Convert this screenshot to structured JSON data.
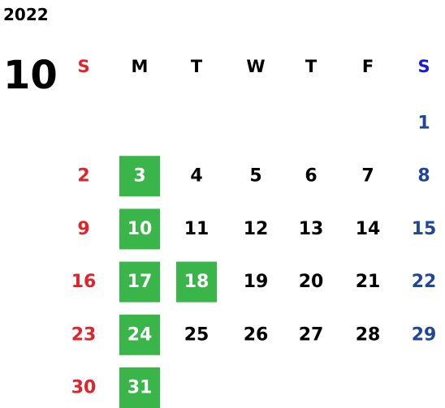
{
  "year": "2022",
  "month": "10",
  "weekdays": [
    "S",
    "M",
    "T",
    "W",
    "T",
    "F",
    "S"
  ],
  "weeks": [
    [
      null,
      null,
      null,
      null,
      null,
      null,
      {
        "day": "1",
        "highlight": false
      }
    ],
    [
      {
        "day": "2",
        "highlight": false
      },
      {
        "day": "3",
        "highlight": true
      },
      {
        "day": "4",
        "highlight": false
      },
      {
        "day": "5",
        "highlight": false
      },
      {
        "day": "6",
        "highlight": false
      },
      {
        "day": "7",
        "highlight": false
      },
      {
        "day": "8",
        "highlight": false
      }
    ],
    [
      {
        "day": "9",
        "highlight": false
      },
      {
        "day": "10",
        "highlight": true
      },
      {
        "day": "11",
        "highlight": false
      },
      {
        "day": "12",
        "highlight": false
      },
      {
        "day": "13",
        "highlight": false
      },
      {
        "day": "14",
        "highlight": false
      },
      {
        "day": "15",
        "highlight": false
      }
    ],
    [
      {
        "day": "16",
        "highlight": false
      },
      {
        "day": "17",
        "highlight": true
      },
      {
        "day": "18",
        "highlight": true
      },
      {
        "day": "19",
        "highlight": false
      },
      {
        "day": "20",
        "highlight": false
      },
      {
        "day": "21",
        "highlight": false
      },
      {
        "day": "22",
        "highlight": false
      }
    ],
    [
      {
        "day": "23",
        "highlight": false
      },
      {
        "day": "24",
        "highlight": true
      },
      {
        "day": "25",
        "highlight": false
      },
      {
        "day": "26",
        "highlight": false
      },
      {
        "day": "27",
        "highlight": false
      },
      {
        "day": "28",
        "highlight": false
      },
      {
        "day": "29",
        "highlight": false
      }
    ],
    [
      {
        "day": "30",
        "highlight": false
      },
      {
        "day": "31",
        "highlight": true
      },
      null,
      null,
      null,
      null,
      null
    ]
  ]
}
